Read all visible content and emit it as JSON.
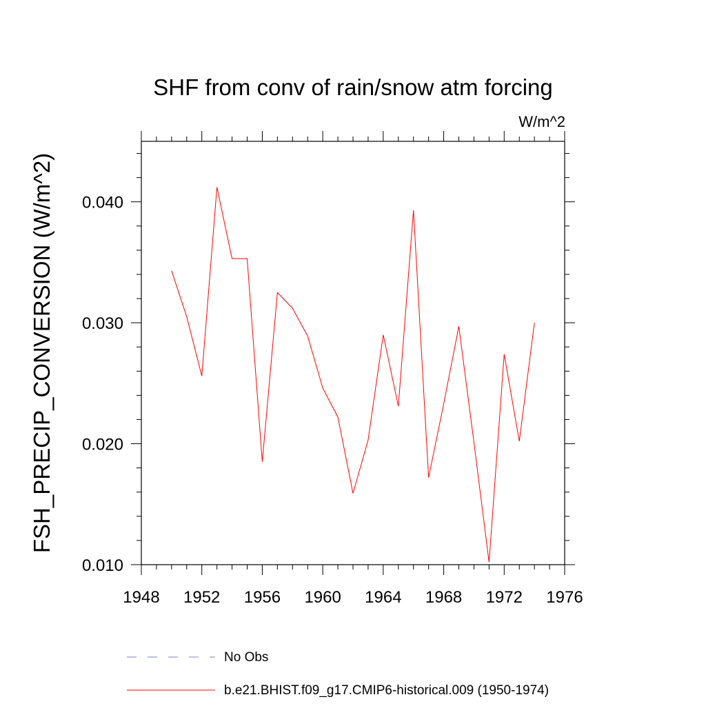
{
  "chart_data": {
    "type": "line",
    "title": "SHF from conv of rain/snow atm forcing",
    "units_label": "W/m^2",
    "xlabel": "",
    "ylabel": "FSH_PRECIP_CONVERSION  (W/m^2)",
    "xlim": [
      1948,
      1976
    ],
    "ylim": [
      0.01,
      0.045
    ],
    "x_ticks": [
      1948,
      1952,
      1956,
      1960,
      1964,
      1968,
      1972,
      1976
    ],
    "x_tick_labels": [
      "1948",
      "1952",
      "1956",
      "1960",
      "1964",
      "1968",
      "1972",
      "1976"
    ],
    "y_ticks": [
      0.01,
      0.02,
      0.03,
      0.04
    ],
    "y_tick_labels": [
      "0.010",
      "0.020",
      "0.030",
      "0.040"
    ],
    "grid": false,
    "legend_position": "bottom",
    "series": [
      {
        "name": "No Obs",
        "color": "#8080c0",
        "style": "dashed",
        "x": [],
        "values": []
      },
      {
        "name": "b.e21.BHIST.f09_g17.CMIP6-historical.009 (1950-1974)",
        "color": "#ff0000",
        "style": "solid",
        "x": [
          1950,
          1951,
          1952,
          1953,
          1954,
          1955,
          1956,
          1957,
          1958,
          1959,
          1960,
          1961,
          1962,
          1963,
          1964,
          1965,
          1966,
          1967,
          1968,
          1969,
          1970,
          1971,
          1972,
          1973,
          1974
        ],
        "values": [
          0.0343,
          0.0305,
          0.0256,
          0.0412,
          0.0353,
          0.0353,
          0.0185,
          0.0325,
          0.0312,
          0.0289,
          0.0246,
          0.0222,
          0.0159,
          0.0203,
          0.029,
          0.0231,
          0.0393,
          0.0172,
          0.0233,
          0.0297,
          0.0201,
          0.0102,
          0.0274,
          0.0202,
          0.03
        ]
      }
    ]
  }
}
